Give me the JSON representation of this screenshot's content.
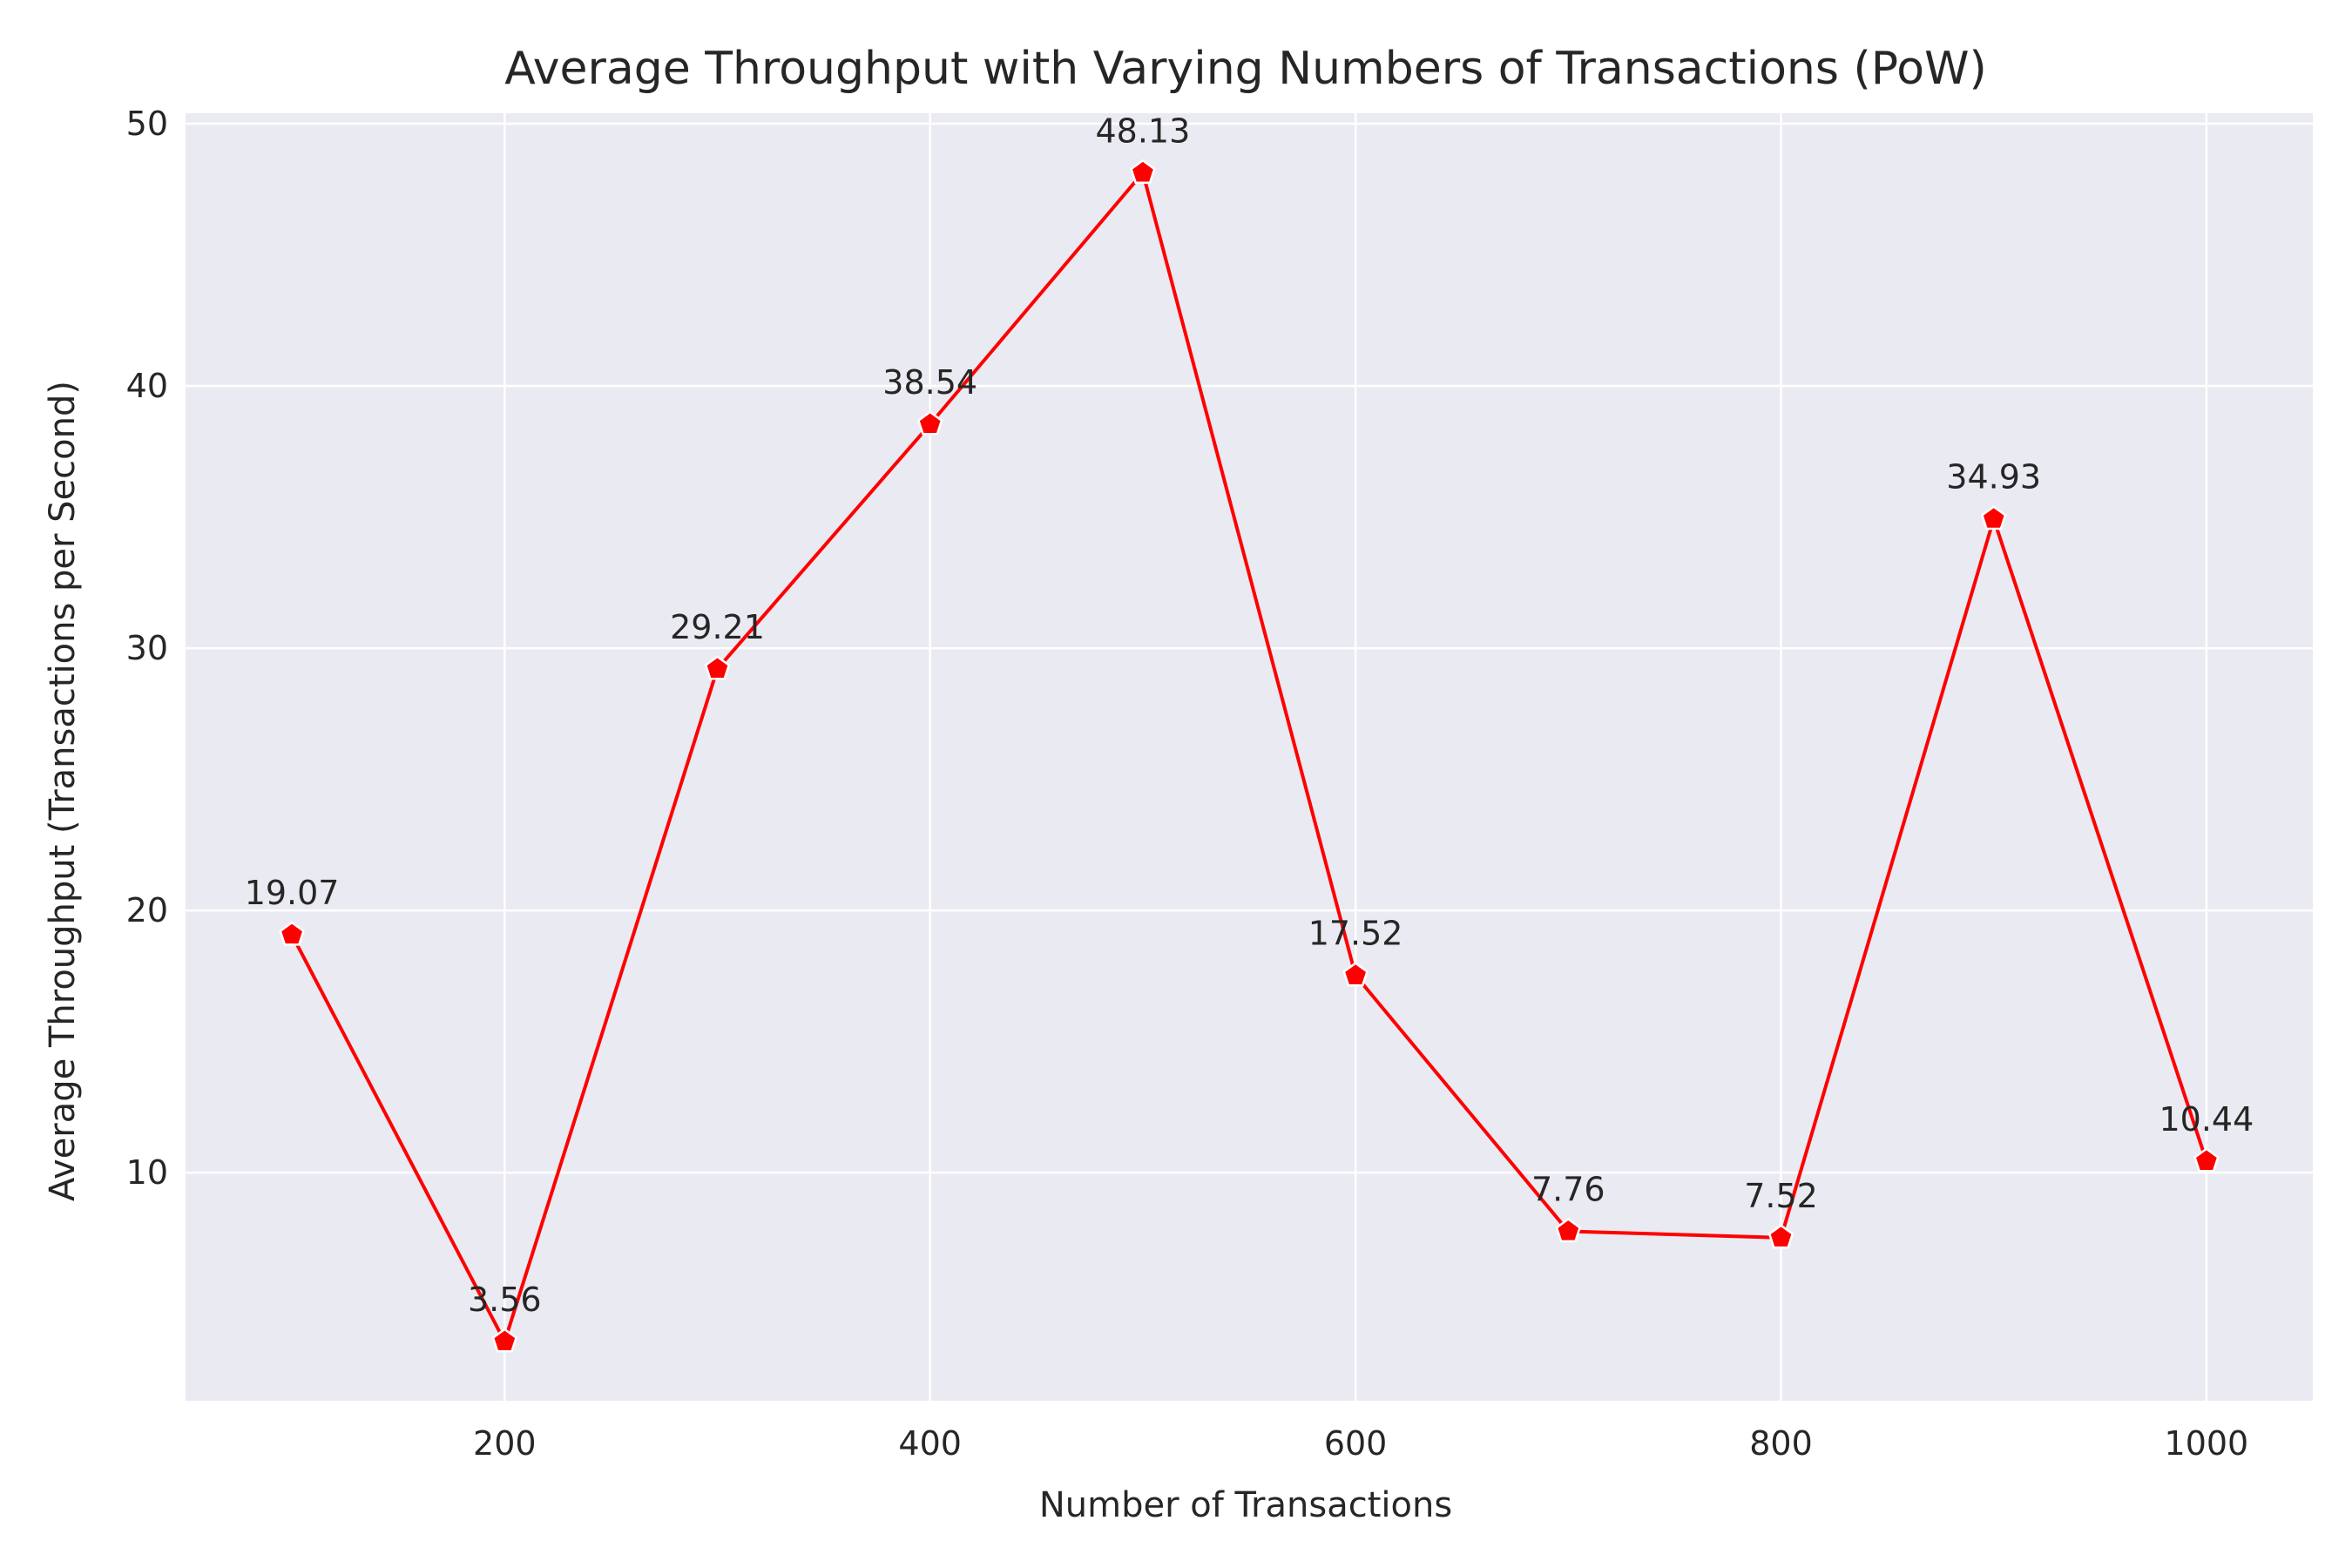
{
  "chart_data": {
    "type": "line",
    "title": "Average Throughput with Varying Numbers of Transactions (PoW)",
    "xlabel": "Number of Transactions",
    "ylabel": "Average Throughput (Transactions per Second)",
    "x": [
      100,
      200,
      300,
      400,
      500,
      600,
      700,
      800,
      900,
      1000
    ],
    "series": [
      {
        "values": [
          19.07,
          3.56,
          29.21,
          38.54,
          48.13,
          17.52,
          7.76,
          7.52,
          34.93,
          10.44
        ],
        "labels": [
          "19.07",
          "3.56",
          "29.21",
          "38.54",
          "48.13",
          "17.52",
          "7.76",
          "7.52",
          "34.93",
          "10.44"
        ]
      }
    ],
    "xlim": [
      50,
      1050
    ],
    "ylim": [
      1.3,
      50.4
    ],
    "xticks": [
      200,
      400,
      600,
      800,
      1000
    ],
    "xtick_labels": [
      "200",
      "400",
      "600",
      "800",
      "1000"
    ],
    "yticks": [
      10,
      20,
      30,
      40,
      50
    ],
    "ytick_labels": [
      "10",
      "20",
      "30",
      "40",
      "50"
    ],
    "grid": true,
    "marker": "pentagon",
    "colors": {
      "line": "#ff0000",
      "marker_edge": "#ffffff",
      "plot_background": "#eaeaf2",
      "grid": "#ffffff",
      "text": "#262626"
    }
  }
}
